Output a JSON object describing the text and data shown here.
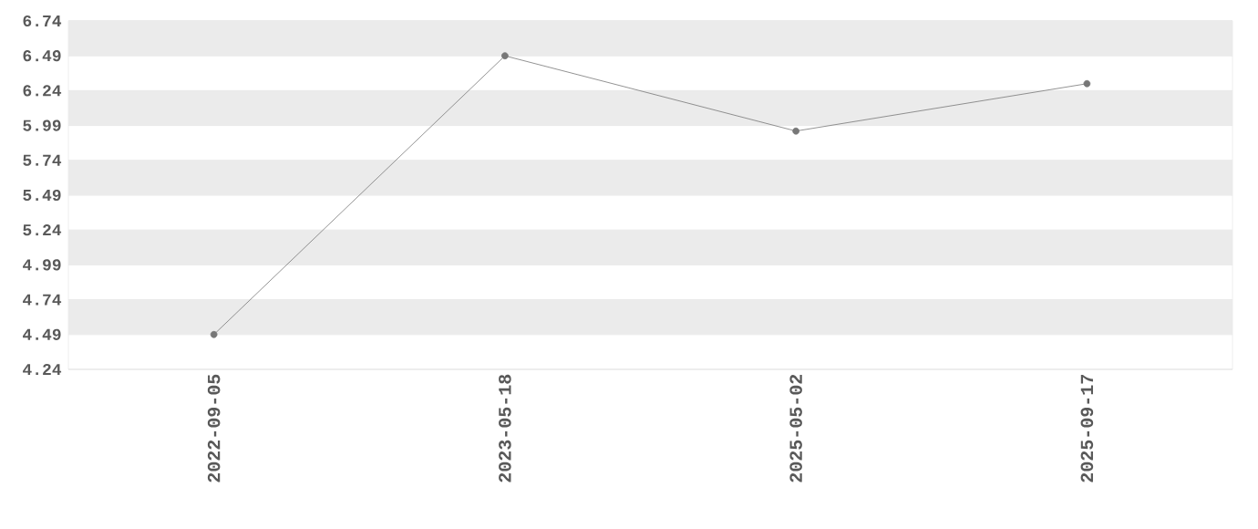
{
  "chart_data": {
    "type": "line",
    "categories": [
      "2022-09-05",
      "2023-05-18",
      "2025-05-02",
      "2025-09-17"
    ],
    "series": [
      {
        "color": "#777777",
        "values": [
          4.49,
          6.49,
          5.95,
          6.29
        ]
      }
    ],
    "ylim": [
      4.24,
      6.74
    ],
    "yticks": [
      4.24,
      4.49,
      4.74,
      4.99,
      5.24,
      5.49,
      5.74,
      5.99,
      6.24,
      6.49,
      6.74
    ],
    "grid": "y",
    "marker": "circle",
    "line_style": "solid"
  }
}
